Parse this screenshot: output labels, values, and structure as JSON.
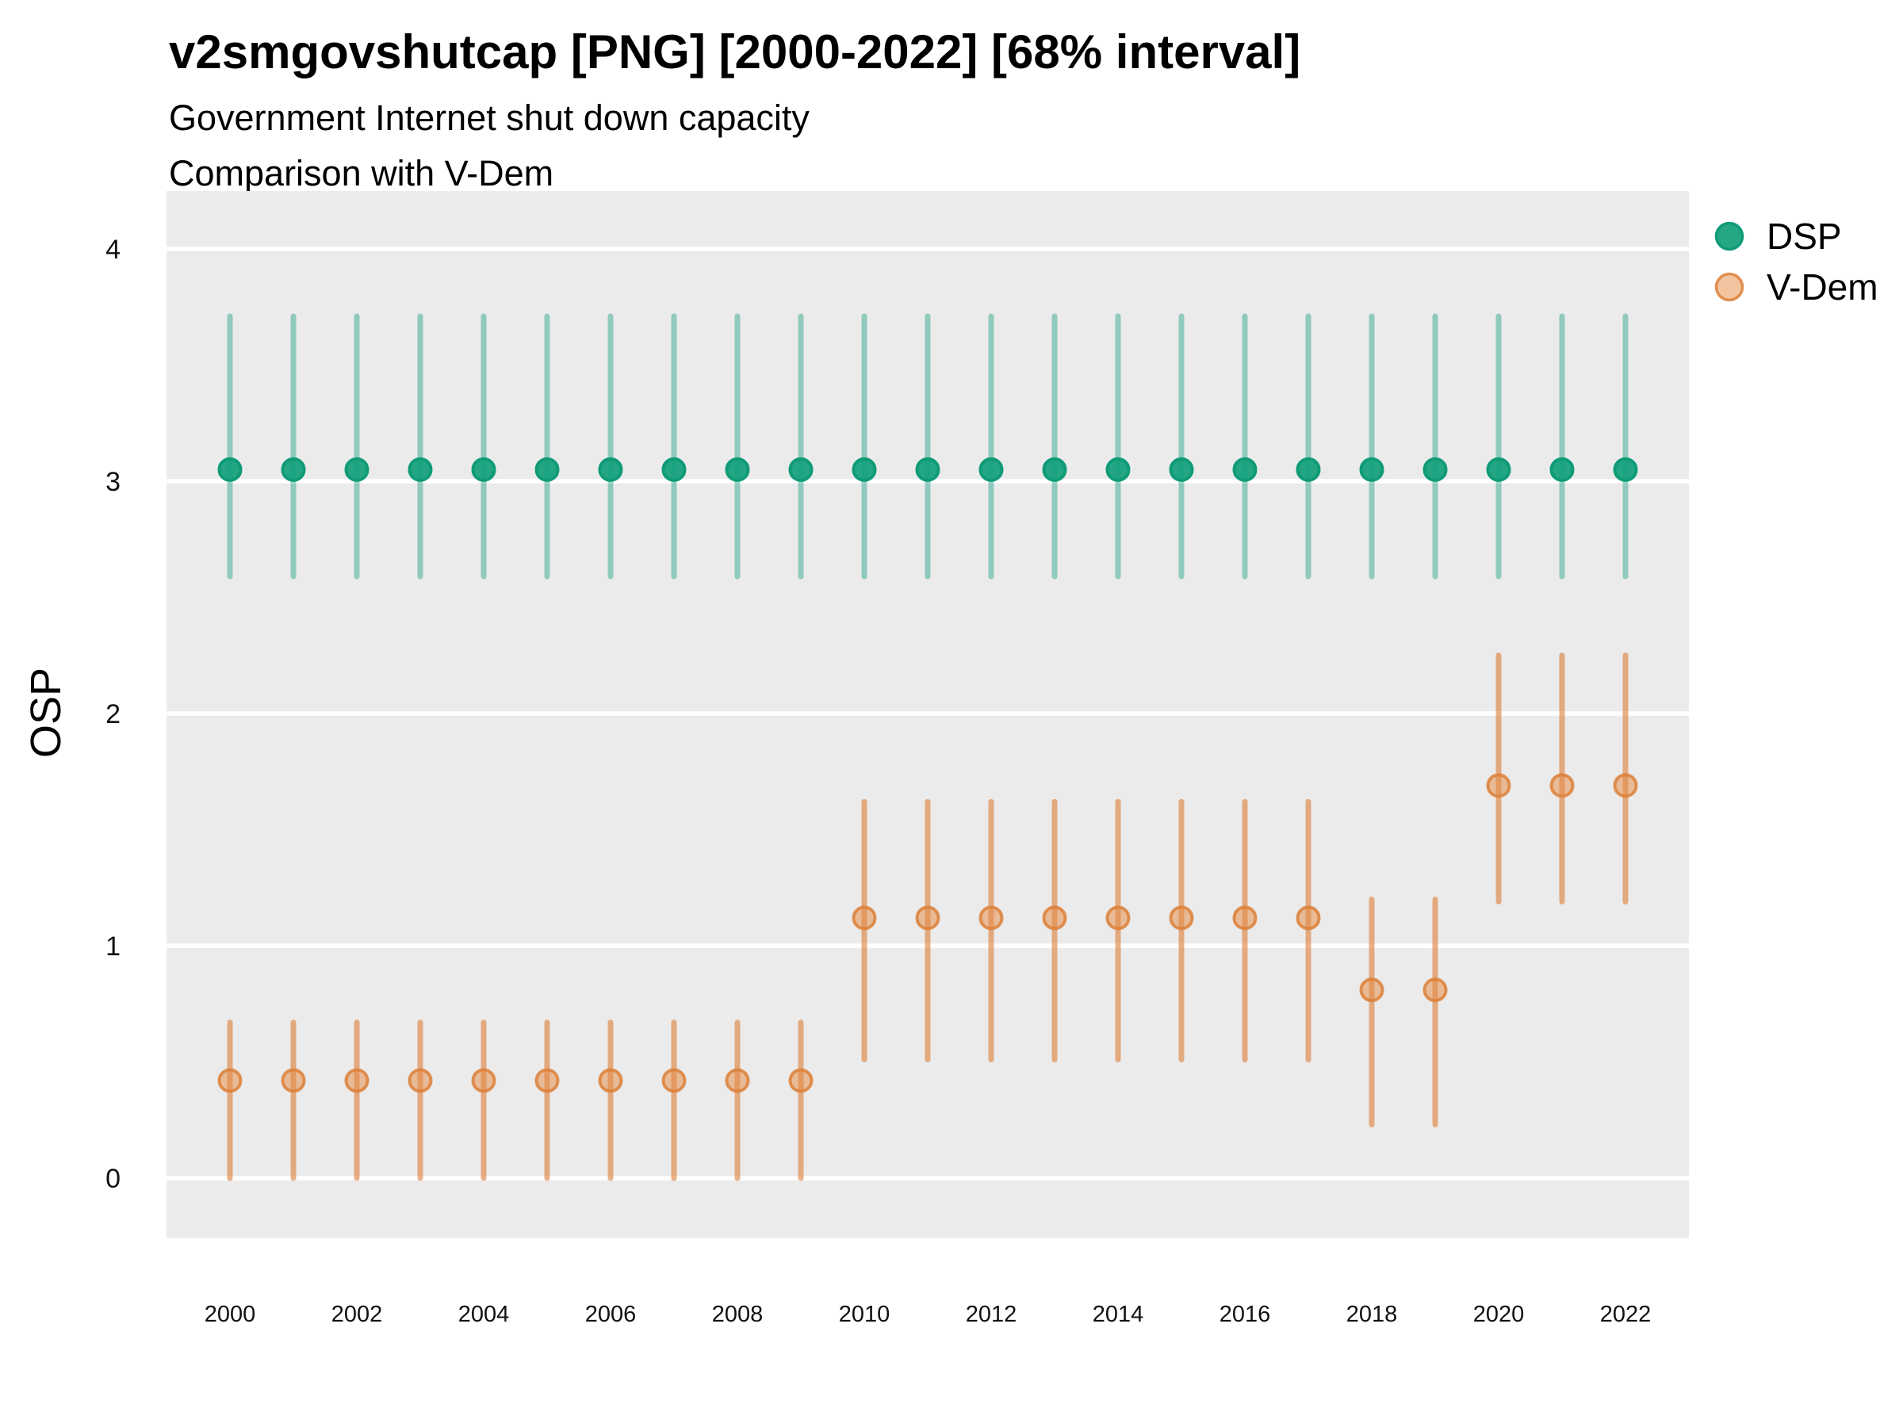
{
  "header": {
    "title": "v2smgovshutcap [PNG] [2000-2022] [68% interval]",
    "subtitle_line1": "Government Internet shut down capacity",
    "subtitle_line2": "Comparison with V-Dem"
  },
  "chart_data": {
    "type": "pointrange",
    "title": "v2smgovshutcap [PNG] [2000-2022] [68% interval]",
    "subtitle": [
      "Government Internet shut down capacity",
      "Comparison with V-Dem"
    ],
    "interval": "68%",
    "xlabel": "",
    "ylabel": "OSP",
    "x_ticks": [
      2000,
      2002,
      2004,
      2006,
      2008,
      2010,
      2012,
      2014,
      2016,
      2018,
      2020,
      2022
    ],
    "y_ticks": [
      0,
      1,
      2,
      3,
      4
    ],
    "xlim": [
      1999,
      2023
    ],
    "ylim": [
      -0.26,
      4.25
    ],
    "grid": "horizontal-only",
    "legend_position": "right-top",
    "panel_bg": "#EBEBEB",
    "grid_color": "#FFFFFF",
    "series": [
      {
        "name": "DSP",
        "id": "dsp",
        "color": "#12A07C",
        "point_fill": "#12A07C",
        "point_fill_opacity": 0.92,
        "point_stroke": "#0F9B77",
        "point_stroke_opacity": 1,
        "bar_color": "#21A183",
        "bar_opacity": 0.45,
        "points": [
          {
            "x": 2000,
            "y": 3.05,
            "low": 2.59,
            "high": 3.71
          },
          {
            "x": 2001,
            "y": 3.05,
            "low": 2.59,
            "high": 3.71
          },
          {
            "x": 2002,
            "y": 3.05,
            "low": 2.59,
            "high": 3.71
          },
          {
            "x": 2003,
            "y": 3.05,
            "low": 2.59,
            "high": 3.71
          },
          {
            "x": 2004,
            "y": 3.05,
            "low": 2.59,
            "high": 3.71
          },
          {
            "x": 2005,
            "y": 3.05,
            "low": 2.59,
            "high": 3.71
          },
          {
            "x": 2006,
            "y": 3.05,
            "low": 2.59,
            "high": 3.71
          },
          {
            "x": 2007,
            "y": 3.05,
            "low": 2.59,
            "high": 3.71
          },
          {
            "x": 2008,
            "y": 3.05,
            "low": 2.59,
            "high": 3.71
          },
          {
            "x": 2009,
            "y": 3.05,
            "low": 2.59,
            "high": 3.71
          },
          {
            "x": 2010,
            "y": 3.05,
            "low": 2.59,
            "high": 3.71
          },
          {
            "x": 2011,
            "y": 3.05,
            "low": 2.59,
            "high": 3.71
          },
          {
            "x": 2012,
            "y": 3.05,
            "low": 2.59,
            "high": 3.71
          },
          {
            "x": 2013,
            "y": 3.05,
            "low": 2.59,
            "high": 3.71
          },
          {
            "x": 2014,
            "y": 3.05,
            "low": 2.59,
            "high": 3.71
          },
          {
            "x": 2015,
            "y": 3.05,
            "low": 2.59,
            "high": 3.71
          },
          {
            "x": 2016,
            "y": 3.05,
            "low": 2.59,
            "high": 3.71
          },
          {
            "x": 2017,
            "y": 3.05,
            "low": 2.59,
            "high": 3.71
          },
          {
            "x": 2018,
            "y": 3.05,
            "low": 2.59,
            "high": 3.71
          },
          {
            "x": 2019,
            "y": 3.05,
            "low": 2.59,
            "high": 3.71
          },
          {
            "x": 2020,
            "y": 3.05,
            "low": 2.59,
            "high": 3.71
          },
          {
            "x": 2021,
            "y": 3.05,
            "low": 2.59,
            "high": 3.71
          },
          {
            "x": 2022,
            "y": 3.05,
            "low": 2.59,
            "high": 3.71
          }
        ]
      },
      {
        "name": "V-Dem",
        "id": "vdem",
        "color": "#E68A42",
        "point_fill": "#E68A42",
        "point_fill_opacity": 0.5,
        "point_stroke": "#DC8038",
        "point_stroke_opacity": 0.85,
        "bar_color": "#DE813B",
        "bar_opacity": 0.62,
        "points": [
          {
            "x": 2000,
            "y": 0.42,
            "low": 0.0,
            "high": 0.67
          },
          {
            "x": 2001,
            "y": 0.42,
            "low": 0.0,
            "high": 0.67
          },
          {
            "x": 2002,
            "y": 0.42,
            "low": 0.0,
            "high": 0.67
          },
          {
            "x": 2003,
            "y": 0.42,
            "low": 0.0,
            "high": 0.67
          },
          {
            "x": 2004,
            "y": 0.42,
            "low": 0.0,
            "high": 0.67
          },
          {
            "x": 2005,
            "y": 0.42,
            "low": 0.0,
            "high": 0.67
          },
          {
            "x": 2006,
            "y": 0.42,
            "low": 0.0,
            "high": 0.67
          },
          {
            "x": 2007,
            "y": 0.42,
            "low": 0.0,
            "high": 0.67
          },
          {
            "x": 2008,
            "y": 0.42,
            "low": 0.0,
            "high": 0.67
          },
          {
            "x": 2009,
            "y": 0.42,
            "low": 0.0,
            "high": 0.67
          },
          {
            "x": 2010,
            "y": 1.12,
            "low": 0.51,
            "high": 1.62
          },
          {
            "x": 2011,
            "y": 1.12,
            "low": 0.51,
            "high": 1.62
          },
          {
            "x": 2012,
            "y": 1.12,
            "low": 0.51,
            "high": 1.62
          },
          {
            "x": 2013,
            "y": 1.12,
            "low": 0.51,
            "high": 1.62
          },
          {
            "x": 2014,
            "y": 1.12,
            "low": 0.51,
            "high": 1.62
          },
          {
            "x": 2015,
            "y": 1.12,
            "low": 0.51,
            "high": 1.62
          },
          {
            "x": 2016,
            "y": 1.12,
            "low": 0.51,
            "high": 1.62
          },
          {
            "x": 2017,
            "y": 1.12,
            "low": 0.51,
            "high": 1.62
          },
          {
            "x": 2018,
            "y": 0.81,
            "low": 0.23,
            "high": 1.2
          },
          {
            "x": 2019,
            "y": 0.81,
            "low": 0.23,
            "high": 1.2
          },
          {
            "x": 2020,
            "y": 1.69,
            "low": 1.19,
            "high": 2.25
          },
          {
            "x": 2021,
            "y": 1.69,
            "low": 1.19,
            "high": 2.25
          },
          {
            "x": 2022,
            "y": 1.69,
            "low": 1.19,
            "high": 2.25
          }
        ]
      }
    ]
  }
}
